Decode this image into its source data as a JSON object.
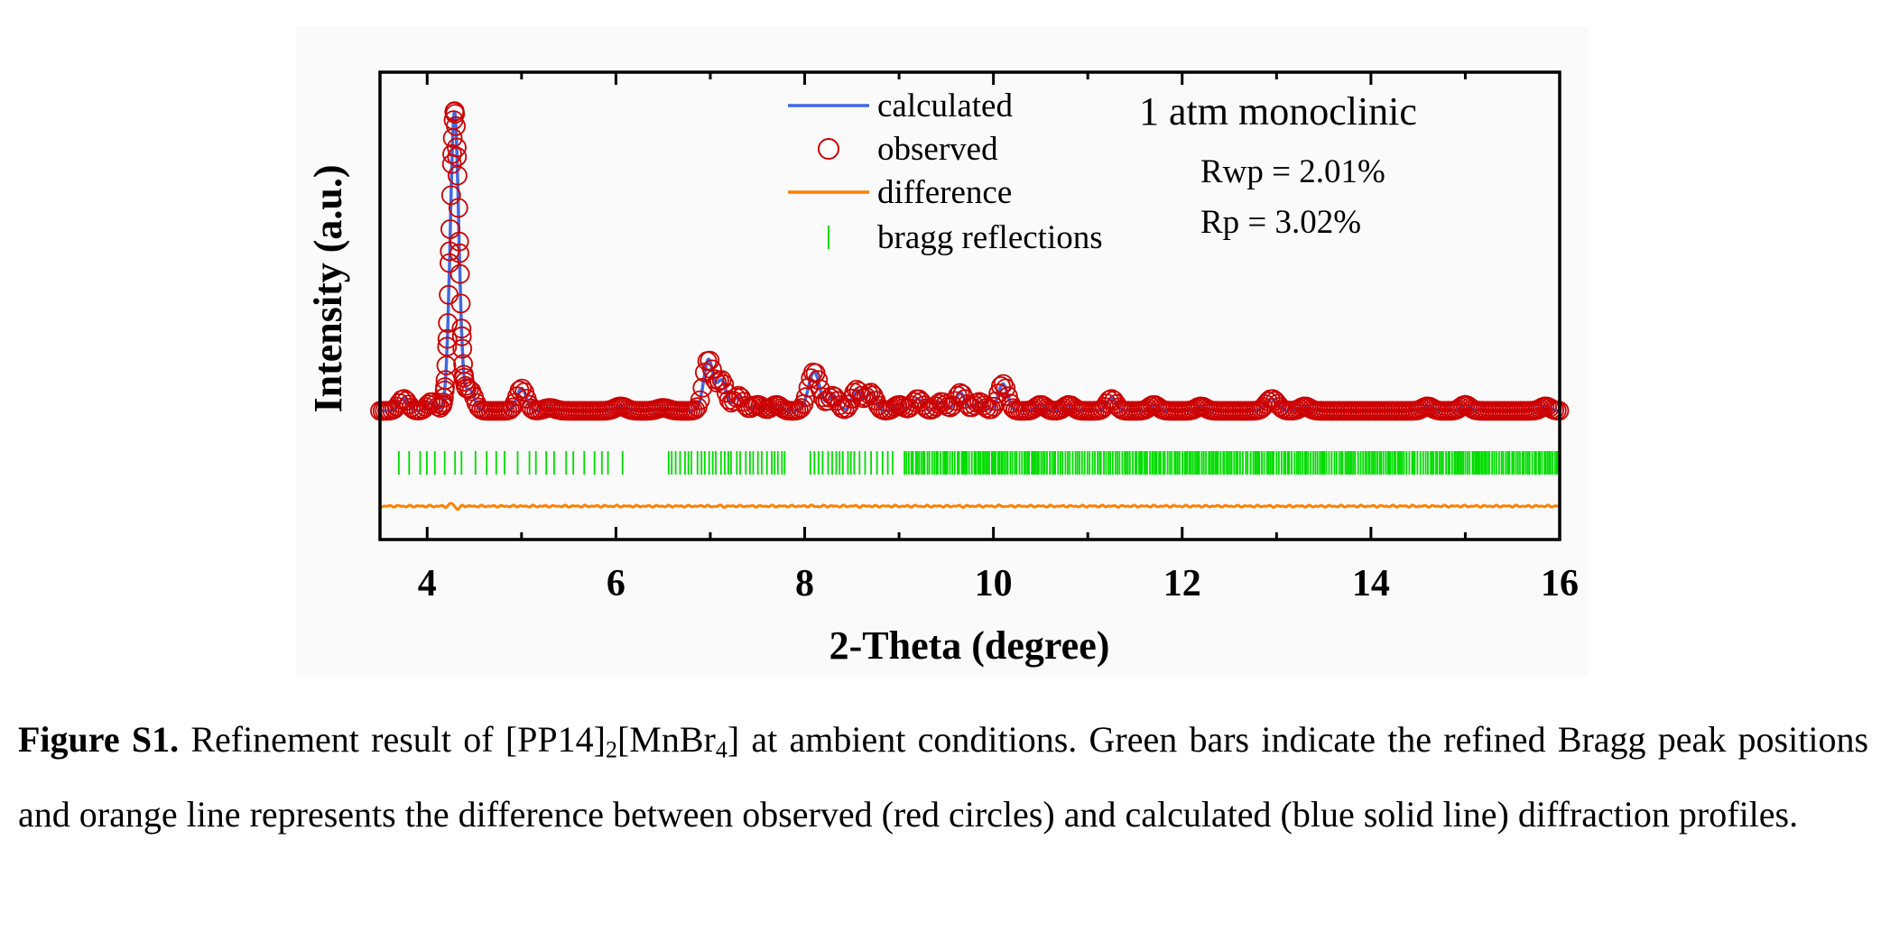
{
  "chart_data": {
    "type": "line",
    "xlabel": "2-Theta (degree)",
    "ylabel": "Intensity (a.u.)",
    "xlim": [
      3.5,
      16
    ],
    "xticks": [
      4,
      6,
      8,
      10,
      12,
      14,
      16
    ],
    "x_tick_labels": [
      "4",
      "6",
      "8",
      "10",
      "12",
      "14",
      "16"
    ],
    "y_ticks_shown": false,
    "grid": false,
    "legend_position": "top-center",
    "legend": [
      "calculated",
      "observed",
      "difference",
      "bragg reflections"
    ],
    "annotation_title": "1 atm monoclinic",
    "annotations": [
      "Rwp = 2.01%",
      "Rp = 3.02%"
    ],
    "colors": {
      "calculated": "#4169e1",
      "observed": "#cc0000",
      "difference": "#ff8000",
      "bragg": "#00dd00"
    },
    "series": [
      {
        "name": "observed",
        "marker": "open-circle",
        "baseline": 0.02,
        "peaks": [
          {
            "x": 3.75,
            "h": 0.04,
            "w": 0.05
          },
          {
            "x": 4.05,
            "h": 0.03,
            "w": 0.05
          },
          {
            "x": 4.29,
            "h": 1.0,
            "w": 0.045
          },
          {
            "x": 4.45,
            "h": 0.07,
            "w": 0.05
          },
          {
            "x": 5.0,
            "h": 0.075,
            "w": 0.05
          },
          {
            "x": 5.3,
            "h": 0.01,
            "w": 0.06
          },
          {
            "x": 6.05,
            "h": 0.015,
            "w": 0.06
          },
          {
            "x": 6.5,
            "h": 0.01,
            "w": 0.06
          },
          {
            "x": 6.98,
            "h": 0.17,
            "w": 0.05
          },
          {
            "x": 7.12,
            "h": 0.1,
            "w": 0.05
          },
          {
            "x": 7.3,
            "h": 0.05,
            "w": 0.05
          },
          {
            "x": 7.5,
            "h": 0.02,
            "w": 0.05
          },
          {
            "x": 7.7,
            "h": 0.02,
            "w": 0.05
          },
          {
            "x": 8.1,
            "h": 0.13,
            "w": 0.06
          },
          {
            "x": 8.3,
            "h": 0.05,
            "w": 0.05
          },
          {
            "x": 8.55,
            "h": 0.07,
            "w": 0.05
          },
          {
            "x": 8.7,
            "h": 0.06,
            "w": 0.05
          },
          {
            "x": 9.0,
            "h": 0.02,
            "w": 0.05
          },
          {
            "x": 9.2,
            "h": 0.04,
            "w": 0.05
          },
          {
            "x": 9.45,
            "h": 0.03,
            "w": 0.05
          },
          {
            "x": 9.65,
            "h": 0.06,
            "w": 0.05
          },
          {
            "x": 9.85,
            "h": 0.03,
            "w": 0.05
          },
          {
            "x": 10.1,
            "h": 0.09,
            "w": 0.05
          },
          {
            "x": 10.5,
            "h": 0.02,
            "w": 0.05
          },
          {
            "x": 10.8,
            "h": 0.02,
            "w": 0.05
          },
          {
            "x": 11.25,
            "h": 0.04,
            "w": 0.05
          },
          {
            "x": 11.7,
            "h": 0.02,
            "w": 0.05
          },
          {
            "x": 12.2,
            "h": 0.015,
            "w": 0.05
          },
          {
            "x": 12.95,
            "h": 0.04,
            "w": 0.06
          },
          {
            "x": 13.3,
            "h": 0.015,
            "w": 0.05
          },
          {
            "x": 14.6,
            "h": 0.015,
            "w": 0.05
          },
          {
            "x": 15.0,
            "h": 0.02,
            "w": 0.05
          },
          {
            "x": 15.85,
            "h": 0.015,
            "w": 0.05
          }
        ]
      },
      {
        "name": "calculated",
        "marker": "line"
      },
      {
        "name": "difference",
        "marker": "line"
      },
      {
        "name": "bragg reflections",
        "marker": "vertical-tick",
        "positions_start": 3.7,
        "positions_end": 16.0
      }
    ]
  },
  "caption": {
    "label": "Figure S1.",
    "text_before": " Refinement result of [PP14]",
    "sub1": "2",
    "text_mid": "[MnBr",
    "sub2": "4",
    "text_after": "] at ambient conditions. Green bars indicate the refined Bragg peak positions and orange line represents the difference between observed (red circles) and calculated (blue solid line) diffraction profiles."
  }
}
